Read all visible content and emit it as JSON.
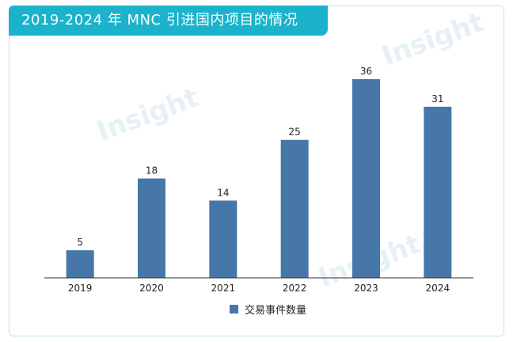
{
  "chart_data": {
    "type": "bar",
    "title": "2019-2024 年 MNC 引进国内项目的情况",
    "categories": [
      "2019",
      "2020",
      "2021",
      "2022",
      "2023",
      "2024"
    ],
    "series": [
      {
        "name": "交易事件数量",
        "values": [
          5,
          18,
          14,
          25,
          36,
          31
        ],
        "color": "#4677a8"
      }
    ],
    "xlabel": "",
    "ylabel": "",
    "ylim": [
      0,
      36
    ],
    "grid": false,
    "legend_position": "bottom"
  },
  "watermark": "Insight"
}
